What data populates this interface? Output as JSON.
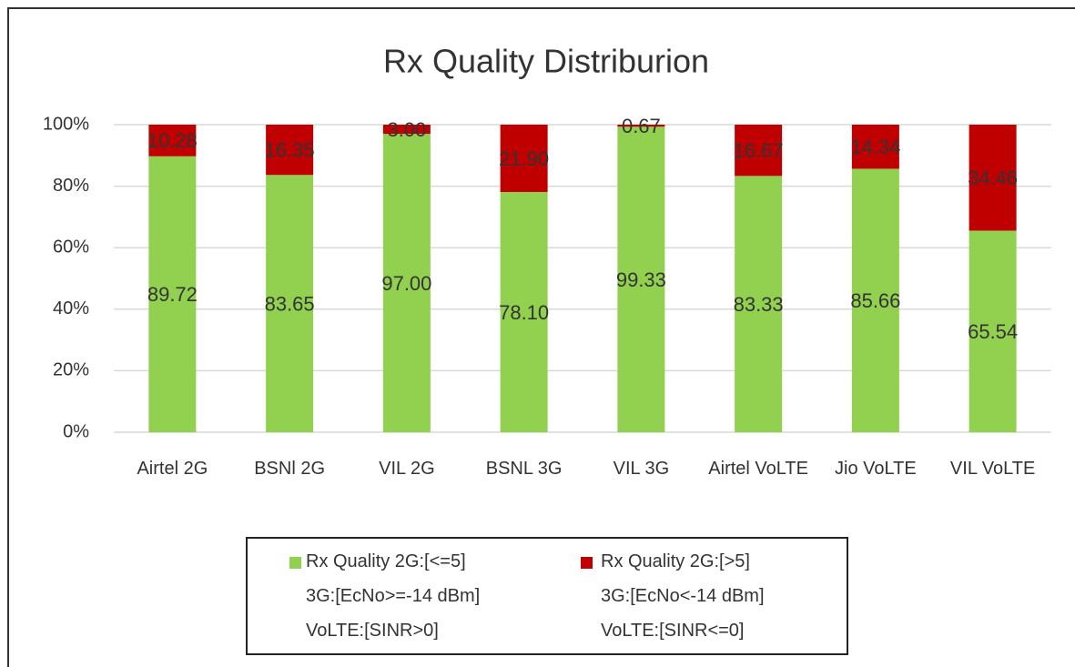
{
  "chart_data": {
    "type": "stacked_bar",
    "title": "Rx Quality Distriburion",
    "categories": [
      "Airtel 2G",
      "BSNl 2G",
      "VIL 2G",
      "BSNL 3G",
      "VIL 3G",
      "Airtel VoLTE",
      "Jio VoLTE",
      "VIL VoLTE"
    ],
    "series": [
      {
        "name": "Rx Quality 2G:[<=5]\n3G:[EcNo>=-14 dBm]\nVoLTE:[SINR>0]",
        "color": "#92d050",
        "values": [
          89.72,
          83.65,
          97,
          78.1,
          99.33,
          83.33,
          85.66,
          65.54
        ],
        "value_labels": [
          "89.72",
          "83.65",
          "97.00",
          "78.10",
          "99.33",
          "83.33",
          "85.66",
          "65.54"
        ]
      },
      {
        "name": "Rx Quality 2G:[>5]\n3G:[EcNo<-14 dBm]\nVoLTE:[SINR<=0]",
        "color": "#c00000",
        "values": [
          10.28,
          16.35,
          3,
          21.9,
          0.67,
          16.67,
          14.34,
          34.46
        ],
        "value_labels": [
          "10.28",
          "16.35",
          "3.00",
          "21.90",
          "0.67",
          "16.67",
          "14.34",
          "34.46"
        ]
      }
    ],
    "ylim": [
      0,
      100
    ],
    "yticks": [
      {
        "value": 0,
        "label": "0%"
      },
      {
        "value": 20,
        "label": "20%"
      },
      {
        "value": 40,
        "label": "40%"
      },
      {
        "value": 60,
        "label": "60%"
      },
      {
        "value": 80,
        "label": "80%"
      },
      {
        "value": 100,
        "label": "100%"
      }
    ],
    "grid": true,
    "legend": "bottom"
  }
}
